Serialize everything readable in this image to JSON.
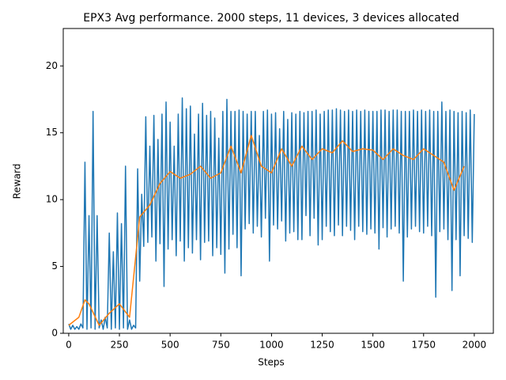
{
  "chart_data": {
    "type": "line",
    "title": "EPX3 Avg performance. 2000 steps, 11 devices, 3 devices allocated",
    "x_label": "Steps",
    "y_label": "Reward",
    "xlim": [
      -27,
      2094
    ],
    "xticks": [
      0,
      250,
      500,
      750,
      1000,
      1250,
      1500,
      1750,
      2000
    ],
    "ylim": [
      0,
      22.8
    ],
    "yticks": [
      0,
      5,
      10,
      15,
      20
    ],
    "series": [
      {
        "color": "#1f77b4",
        "x": [
          0,
          10,
          20,
          30,
          40,
          50,
          60,
          70,
          80,
          90,
          100,
          110,
          120,
          130,
          140,
          150,
          160,
          170,
          180,
          190,
          200,
          210,
          220,
          230,
          240,
          250,
          260,
          270,
          280,
          290,
          300,
          310,
          320,
          330,
          340,
          350,
          360,
          370,
          380,
          390,
          400,
          410,
          420,
          430,
          440,
          450,
          460,
          470,
          480,
          490,
          500,
          510,
          520,
          530,
          540,
          550,
          560,
          570,
          580,
          590,
          600,
          610,
          620,
          630,
          640,
          650,
          660,
          670,
          680,
          690,
          700,
          710,
          720,
          730,
          740,
          750,
          760,
          770,
          780,
          790,
          800,
          810,
          820,
          830,
          840,
          850,
          860,
          870,
          880,
          890,
          900,
          910,
          920,
          930,
          940,
          950,
          960,
          970,
          980,
          990,
          1000,
          1010,
          1020,
          1030,
          1040,
          1050,
          1060,
          1070,
          1080,
          1090,
          1100,
          1110,
          1120,
          1130,
          1140,
          1150,
          1160,
          1170,
          1180,
          1190,
          1200,
          1210,
          1220,
          1230,
          1240,
          1250,
          1260,
          1270,
          1280,
          1290,
          1300,
          1310,
          1320,
          1330,
          1340,
          1350,
          1360,
          1370,
          1380,
          1390,
          1400,
          1410,
          1420,
          1430,
          1440,
          1450,
          1460,
          1470,
          1480,
          1490,
          1500,
          1510,
          1520,
          1530,
          1540,
          1550,
          1560,
          1570,
          1580,
          1590,
          1600,
          1610,
          1620,
          1630,
          1640,
          1650,
          1660,
          1670,
          1680,
          1690,
          1700,
          1710,
          1720,
          1730,
          1740,
          1750,
          1760,
          1770,
          1780,
          1790,
          1800,
          1810,
          1820,
          1830,
          1840,
          1850,
          1860,
          1870,
          1880,
          1890,
          1900,
          1910,
          1920,
          1930,
          1940,
          1950,
          1960,
          1970,
          1980,
          1990,
          2000
        ],
        "values": [
          0.7,
          0.3,
          0.6,
          0.3,
          0.5,
          0.3,
          0.7,
          0.4,
          12.8,
          0.3,
          8.8,
          0.4,
          16.6,
          0.3,
          8.8,
          0.4,
          1.0,
          0.3,
          1.2,
          0.4,
          7.5,
          0.3,
          6.1,
          0.4,
          9.0,
          0.3,
          8.2,
          0.4,
          12.5,
          0.3,
          1.0,
          0.3,
          0.6,
          0.4,
          12.3,
          3.9,
          10.4,
          6.5,
          16.2,
          6.8,
          14.0,
          7.2,
          16.3,
          5.4,
          14.5,
          6.7,
          16.4,
          3.5,
          17.3,
          6.3,
          15.8,
          7.0,
          14.0,
          5.8,
          16.4,
          6.9,
          17.6,
          5.4,
          16.8,
          6.4,
          17.0,
          6.0,
          14.9,
          7.0,
          16.4,
          5.5,
          17.2,
          6.8,
          16.3,
          6.9,
          16.6,
          5.8,
          16.1,
          6.4,
          14.6,
          5.9,
          16.6,
          4.5,
          17.5,
          6.3,
          16.6,
          7.4,
          16.6,
          6.4,
          16.7,
          4.3,
          16.6,
          7.8,
          16.4,
          8.2,
          16.6,
          7.5,
          16.6,
          8.0,
          14.8,
          7.2,
          16.6,
          8.6,
          16.7,
          5.4,
          16.4,
          8.1,
          16.5,
          7.8,
          15.3,
          8.4,
          16.6,
          6.9,
          16.0,
          7.5,
          16.5,
          7.6,
          16.4,
          7.0,
          16.6,
          7.0,
          16.5,
          8.8,
          16.6,
          7.3,
          16.6,
          8.6,
          16.7,
          6.6,
          16.4,
          7.0,
          16.6,
          8.0,
          16.7,
          7.6,
          16.7,
          7.3,
          16.8,
          8.1,
          16.7,
          7.3,
          16.6,
          8.0,
          16.7,
          7.7,
          16.6,
          7.0,
          16.7,
          8.0,
          16.6,
          7.6,
          16.7,
          7.4,
          16.6,
          7.8,
          16.6,
          7.5,
          16.6,
          6.3,
          16.7,
          7.9,
          16.7,
          7.2,
          16.6,
          7.8,
          16.7,
          8.0,
          16.7,
          7.5,
          16.6,
          3.9,
          16.6,
          7.2,
          16.6,
          7.8,
          16.7,
          8.0,
          16.6,
          7.6,
          16.7,
          7.5,
          16.6,
          8.0,
          16.7,
          7.3,
          16.6,
          2.7,
          16.6,
          7.6,
          17.3,
          7.8,
          16.6,
          7.0,
          16.7,
          3.2,
          16.6,
          7.0,
          16.5,
          4.3,
          16.6,
          7.3,
          16.5,
          7.1,
          16.7,
          6.8,
          16.4
        ]
      },
      {
        "color": "#ff7f0e",
        "x": [
          0,
          50,
          80,
          100,
          150,
          200,
          250,
          300,
          350,
          400,
          450,
          500,
          550,
          600,
          650,
          700,
          750,
          800,
          850,
          900,
          950,
          1000,
          1050,
          1100,
          1150,
          1200,
          1250,
          1300,
          1350,
          1400,
          1450,
          1500,
          1550,
          1600,
          1650,
          1700,
          1750,
          1800,
          1850,
          1900,
          1950
        ],
        "values": [
          0.6,
          1.2,
          2.5,
          2.2,
          0.6,
          1.5,
          2.2,
          1.2,
          8.7,
          9.6,
          11.2,
          12.1,
          11.6,
          11.9,
          12.5,
          11.6,
          12.0,
          14.0,
          12.0,
          14.8,
          12.5,
          12.0,
          13.8,
          12.5,
          14.0,
          13.0,
          13.8,
          13.5,
          14.4,
          13.6,
          13.8,
          13.7,
          13.0,
          13.8,
          13.3,
          13.0,
          13.8,
          13.3,
          12.8,
          10.7,
          12.5
        ]
      }
    ]
  }
}
